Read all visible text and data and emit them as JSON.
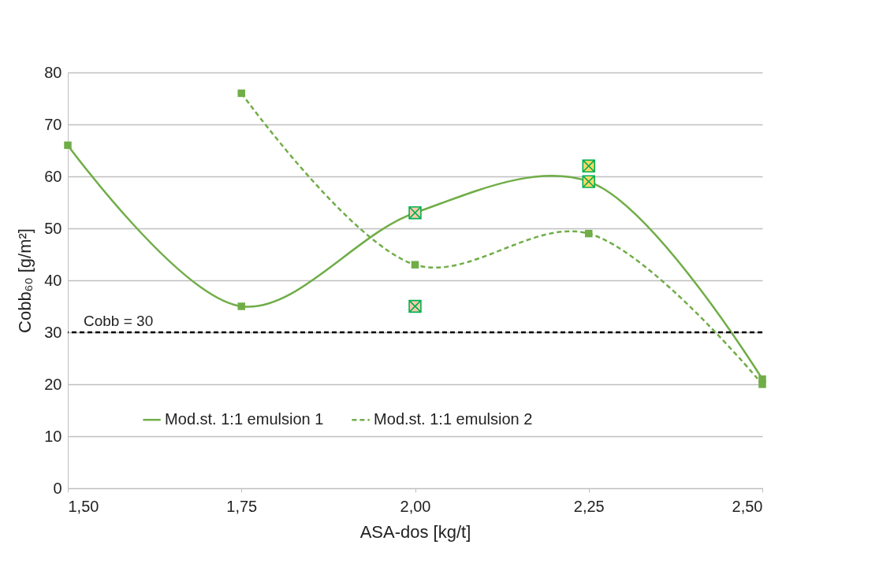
{
  "chart_data": {
    "type": "line",
    "xlabel": "ASA-dos [kg/t]",
    "ylabel": "Cobb₆₀ [g/m²]",
    "xlim": [
      1.5,
      2.5
    ],
    "xticks": [
      {
        "value": 1.5,
        "label": "1,50"
      },
      {
        "value": 1.75,
        "label": "1,75"
      },
      {
        "value": 2.0,
        "label": "2,00"
      },
      {
        "value": 2.25,
        "label": "2,25"
      },
      {
        "value": 2.5,
        "label": "2,50"
      }
    ],
    "ylim": [
      0,
      80
    ],
    "yticks": [
      0,
      10,
      20,
      30,
      40,
      50,
      60,
      70,
      80
    ],
    "grid": "y",
    "legend": "bottom",
    "marker": "square",
    "series": [
      {
        "name": "Mod.st. 1:1 emulsion 1",
        "color": "#70ad47",
        "line_style": "solid",
        "x": [
          1.5,
          1.75,
          2.0,
          2.25,
          2.5
        ],
        "values": [
          66,
          35,
          53,
          59,
          21
        ]
      },
      {
        "name": "Mod.st. 1:1 emulsion 2",
        "color": "#70ad47",
        "line_style": "dashed",
        "x": [
          1.75,
          2.0,
          2.25,
          2.5
        ],
        "values": [
          76,
          43,
          49,
          20
        ]
      },
      {
        "type": "scatter",
        "marker": "cross",
        "color": "#f8cbad",
        "x": [
          2.0,
          2.0
        ],
        "values": [
          53,
          35
        ]
      },
      {
        "type": "scatter",
        "marker": "cross",
        "color": "#ffd966",
        "x": [
          2.25,
          2.25
        ],
        "values": [
          62,
          59
        ]
      }
    ],
    "ref_lines": [
      {
        "axis": "y",
        "value": 30,
        "label": "Cobb = 30",
        "color": "#000000",
        "line_style": "dashed"
      }
    ]
  }
}
